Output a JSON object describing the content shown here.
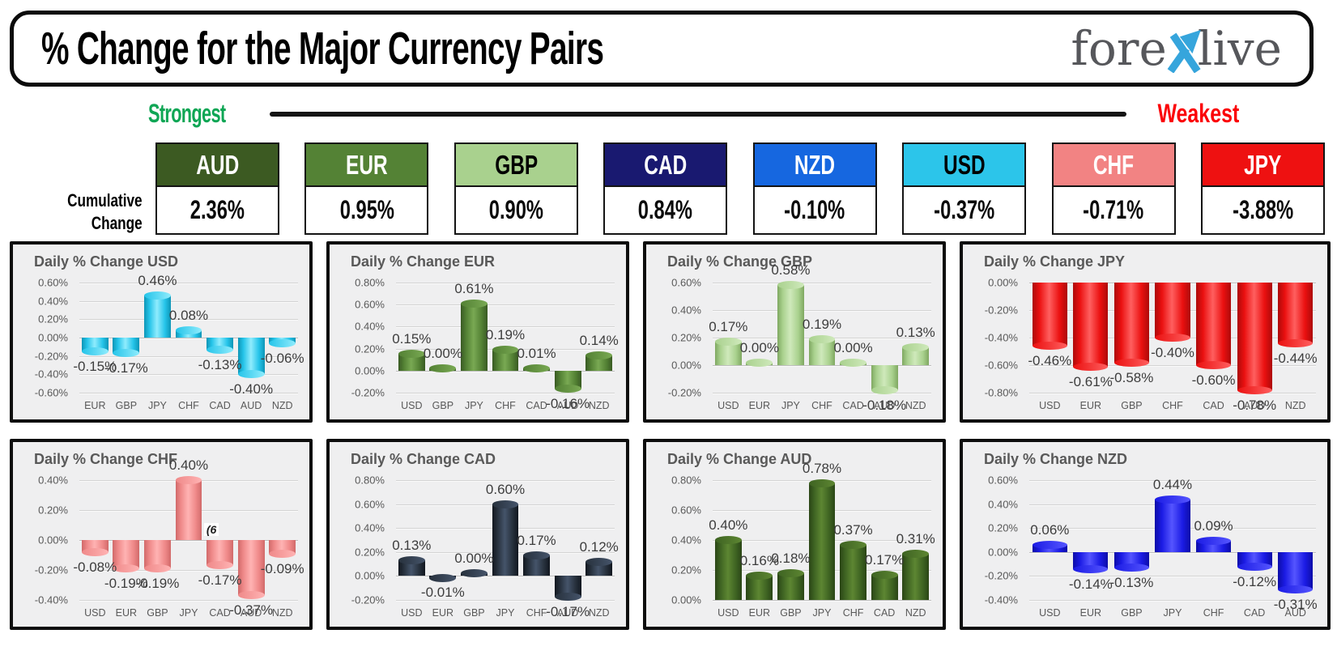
{
  "header": {
    "title": "% Change for the Major Currency Pairs",
    "logo_part1": "fore",
    "logo_part2": "live",
    "logo_accent_color": "#36a5dc",
    "logo_text_color": "#56575b"
  },
  "scale": {
    "strongest": "Strongest",
    "weakest": "Weakest",
    "strongest_color": "#0fa655",
    "weakest_color": "#fb0307"
  },
  "cumulative": {
    "label_line1": "Cumulative",
    "label_line2": "Change",
    "items": [
      {
        "code": "AUD",
        "value": "2.36%",
        "bg": "#3c5a22",
        "text": "#ffffff"
      },
      {
        "code": "EUR",
        "value": "0.95%",
        "bg": "#548235",
        "text": "#ffffff"
      },
      {
        "code": "GBP",
        "value": "0.90%",
        "bg": "#a9d18e",
        "text": "#000000"
      },
      {
        "code": "CAD",
        "value": "0.84%",
        "bg": "#191970",
        "text": "#ffffff"
      },
      {
        "code": "NZD",
        "value": "-0.10%",
        "bg": "#1667e0",
        "text": "#ffffff"
      },
      {
        "code": "USD",
        "value": "-0.37%",
        "bg": "#2cc5ea",
        "text": "#000000"
      },
      {
        "code": "CHF",
        "value": "-0.71%",
        "bg": "#f28383",
        "text": "#ffffff"
      },
      {
        "code": "JPY",
        "value": "-3.88%",
        "bg": "#ee1111",
        "text": "#ffffff"
      }
    ]
  },
  "chart_data": [
    {
      "id": "usd",
      "type": "bar",
      "title": "Daily % Change USD",
      "categories": [
        "EUR",
        "GBP",
        "JPY",
        "CHF",
        "CAD",
        "AUD",
        "NZD"
      ],
      "values": [
        -0.15,
        -0.17,
        0.46,
        0.08,
        -0.13,
        -0.4,
        -0.06
      ],
      "value_labels": [
        "-0.15%",
        "-0.17%",
        "0.46%",
        "0.08%",
        "-0.13%",
        "-0.40%",
        "-0.06%"
      ],
      "ylim": [
        -0.6,
        0.6
      ],
      "yticks": [
        "0.60%",
        "0.40%",
        "0.20%",
        "0.00%",
        "-0.20%",
        "-0.40%",
        "-0.60%"
      ],
      "grid": true,
      "legend": "none",
      "bar_colors": {
        "light": "#8fecfd",
        "main": "#25c4e9",
        "dark": "#0d95b6"
      }
    },
    {
      "id": "eur",
      "type": "bar",
      "title": "Daily % Change EUR",
      "categories": [
        "USD",
        "GBP",
        "JPY",
        "CHF",
        "CAD",
        "AUD",
        "NZD"
      ],
      "values": [
        0.15,
        0.0,
        0.61,
        0.19,
        0.01,
        -0.16,
        0.14
      ],
      "value_labels": [
        "0.15%",
        "0.00%",
        "0.61%",
        "0.19%",
        "0.01%",
        "-0.16%",
        "0.14%"
      ],
      "ylim": [
        -0.2,
        0.8
      ],
      "yticks": [
        "0.80%",
        "0.60%",
        "0.40%",
        "0.20%",
        "0.00%",
        "-0.20%"
      ],
      "grid": true,
      "legend": "none",
      "bar_colors": {
        "light": "#79a953",
        "main": "#538134",
        "dark": "#395a23"
      }
    },
    {
      "id": "gbp",
      "type": "bar",
      "title": "Daily % Change GBP",
      "categories": [
        "USD",
        "EUR",
        "JPY",
        "CHF",
        "CAD",
        "AUD",
        "NZD"
      ],
      "values": [
        0.17,
        0.0,
        0.58,
        0.19,
        0.0,
        -0.18,
        0.13
      ],
      "value_labels": [
        "0.17%",
        "0.00%",
        "0.58%",
        "0.19%",
        "0.00%",
        "-0.18%",
        "0.13%"
      ],
      "ylim": [
        -0.2,
        0.6
      ],
      "yticks": [
        "0.60%",
        "0.40%",
        "0.20%",
        "0.00%",
        "-0.20%"
      ],
      "grid": true,
      "legend": "none",
      "bar_colors": {
        "light": "#cfe9bb",
        "main": "#a9d18e",
        "dark": "#7fa861"
      }
    },
    {
      "id": "jpy",
      "type": "bar",
      "title": "Daily % Change JPY",
      "categories": [
        "USD",
        "EUR",
        "GBP",
        "CHF",
        "CAD",
        "AUD",
        "NZD"
      ],
      "values": [
        -0.46,
        -0.61,
        -0.58,
        -0.4,
        -0.6,
        -0.78,
        -0.44
      ],
      "value_labels": [
        "-0.46%",
        "-0.61%",
        "-0.58%",
        "-0.40%",
        "-0.60%",
        "-0.78%",
        "-0.44%"
      ],
      "ylim": [
        -0.8,
        0.0
      ],
      "yticks": [
        "0.00%",
        "-0.20%",
        "-0.40%",
        "-0.60%",
        "-0.80%"
      ],
      "grid": true,
      "legend": "none",
      "bar_colors": {
        "light": "#ff5f5f",
        "main": "#ea1010",
        "dark": "#ad0a0a"
      }
    },
    {
      "id": "chf",
      "type": "bar",
      "title": "Daily % Change CHF",
      "categories": [
        "USD",
        "EUR",
        "GBP",
        "JPY",
        "CAD",
        "AUD",
        "NZD"
      ],
      "values": [
        -0.08,
        -0.19,
        -0.19,
        0.4,
        -0.17,
        -0.37,
        -0.09
      ],
      "value_labels": [
        "-0.08%",
        "-0.19%",
        "-0.19%",
        "0.40%",
        "-0.17%",
        "-0.37%",
        "-0.09%"
      ],
      "ylim": [
        -0.4,
        0.4
      ],
      "yticks": [
        "0.40%",
        "0.20%",
        "0.00%",
        "-0.20%",
        "-0.40%"
      ],
      "grid": true,
      "legend": "none",
      "annotation": "(6",
      "bar_colors": {
        "light": "#ffb3b3",
        "main": "#ef8989",
        "dark": "#d16a6a"
      }
    },
    {
      "id": "cad",
      "type": "bar",
      "title": "Daily % Change CAD",
      "categories": [
        "USD",
        "EUR",
        "GBP",
        "JPY",
        "CHF",
        "AUD",
        "NZD"
      ],
      "values": [
        0.13,
        -0.01,
        0.0,
        0.6,
        0.17,
        -0.17,
        0.12
      ],
      "value_labels": [
        "0.13%",
        "-0.01%",
        "0.00%",
        "0.60%",
        "0.17%",
        "-0.17%",
        "0.12%"
      ],
      "ylim": [
        -0.2,
        0.8
      ],
      "yticks": [
        "0.80%",
        "0.60%",
        "0.40%",
        "0.20%",
        "0.00%",
        "-0.20%"
      ],
      "grid": true,
      "legend": "none",
      "bar_colors": {
        "light": "#45546a",
        "main": "#27313d",
        "dark": "#12171f"
      }
    },
    {
      "id": "aud",
      "type": "bar",
      "title": "Daily % Change AUD",
      "categories": [
        "USD",
        "EUR",
        "GBP",
        "JPY",
        "CHF",
        "CAD",
        "NZD"
      ],
      "values": [
        0.4,
        0.16,
        0.18,
        0.78,
        0.37,
        0.17,
        0.31
      ],
      "value_labels": [
        "0.40%",
        "0.16%",
        "0.18%",
        "0.78%",
        "0.37%",
        "0.17%",
        "0.31%"
      ],
      "ylim": [
        0.0,
        0.8
      ],
      "yticks": [
        "0.80%",
        "0.60%",
        "0.40%",
        "0.20%",
        "0.00%"
      ],
      "grid": true,
      "legend": "none",
      "bar_colors": {
        "light": "#5d8632",
        "main": "#3e6322",
        "dark": "#2a4516"
      }
    },
    {
      "id": "nzd",
      "type": "bar",
      "title": "Daily % Change NZD",
      "categories": [
        "USD",
        "EUR",
        "GBP",
        "JPY",
        "CHF",
        "CAD",
        "AUD"
      ],
      "values": [
        0.06,
        -0.14,
        -0.13,
        0.44,
        0.09,
        -0.12,
        -0.31
      ],
      "value_labels": [
        "0.06%",
        "-0.14%",
        "-0.13%",
        "0.44%",
        "0.09%",
        "-0.12%",
        "-0.31%"
      ],
      "ylim": [
        -0.4,
        0.6
      ],
      "yticks": [
        "0.60%",
        "0.40%",
        "0.20%",
        "0.00%",
        "-0.20%",
        "-0.40%"
      ],
      "grid": true,
      "legend": "none",
      "bar_colors": {
        "light": "#5555ff",
        "main": "#1b1be4",
        "dark": "#0d0da8"
      }
    }
  ]
}
